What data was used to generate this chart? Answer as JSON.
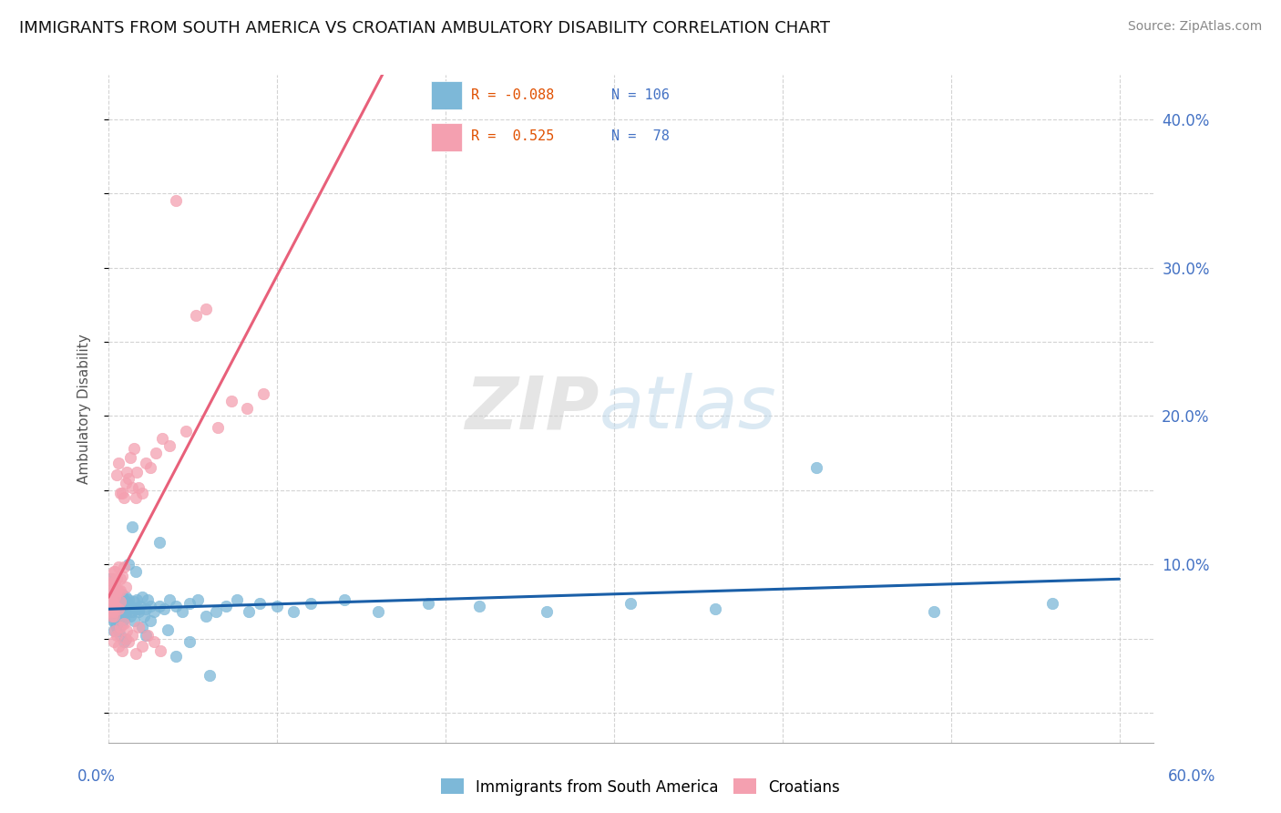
{
  "title": "IMMIGRANTS FROM SOUTH AMERICA VS CROATIAN AMBULATORY DISABILITY CORRELATION CHART",
  "source": "Source: ZipAtlas.com",
  "ylabel": "Ambulatory Disability",
  "xlim": [
    0.0,
    0.62
  ],
  "ylim": [
    -0.02,
    0.43
  ],
  "y_ticks": [
    0.1,
    0.2,
    0.3,
    0.4
  ],
  "y_tick_labels": [
    "10.0%",
    "20.0%",
    "30.0%",
    "40.0%"
  ],
  "blue_color": "#7db8d8",
  "pink_color": "#f4a0b0",
  "blue_line_color": "#1a5fa8",
  "pink_line_color": "#e8607a",
  "pink_dash_color": "#e8a0b0",
  "background_color": "#ffffff",
  "grid_color": "#c8c8c8",
  "title_fontsize": 13,
  "source_fontsize": 10,
  "axis_label_color": "#4472c4",
  "blue_scatter": {
    "x": [
      0.001,
      0.001,
      0.001,
      0.002,
      0.002,
      0.002,
      0.002,
      0.002,
      0.003,
      0.003,
      0.003,
      0.003,
      0.003,
      0.004,
      0.004,
      0.004,
      0.004,
      0.005,
      0.005,
      0.005,
      0.005,
      0.005,
      0.006,
      0.006,
      0.006,
      0.006,
      0.007,
      0.007,
      0.007,
      0.008,
      0.008,
      0.008,
      0.009,
      0.009,
      0.009,
      0.01,
      0.01,
      0.011,
      0.011,
      0.012,
      0.012,
      0.013,
      0.013,
      0.014,
      0.015,
      0.015,
      0.016,
      0.017,
      0.018,
      0.019,
      0.02,
      0.021,
      0.022,
      0.023,
      0.025,
      0.027,
      0.03,
      0.033,
      0.036,
      0.04,
      0.044,
      0.048,
      0.053,
      0.058,
      0.064,
      0.07,
      0.076,
      0.083,
      0.09,
      0.1,
      0.11,
      0.12,
      0.14,
      0.16,
      0.19,
      0.22,
      0.26,
      0.31,
      0.36,
      0.42,
      0.49,
      0.56,
      0.001,
      0.002,
      0.003,
      0.003,
      0.004,
      0.004,
      0.005,
      0.006,
      0.007,
      0.008,
      0.009,
      0.01,
      0.012,
      0.014,
      0.016,
      0.018,
      0.02,
      0.022,
      0.025,
      0.03,
      0.035,
      0.04,
      0.048,
      0.06
    ],
    "y": [
      0.075,
      0.082,
      0.068,
      0.072,
      0.078,
      0.065,
      0.085,
      0.07,
      0.074,
      0.08,
      0.068,
      0.076,
      0.062,
      0.072,
      0.078,
      0.065,
      0.071,
      0.075,
      0.068,
      0.082,
      0.06,
      0.074,
      0.07,
      0.076,
      0.063,
      0.08,
      0.072,
      0.068,
      0.078,
      0.074,
      0.065,
      0.08,
      0.07,
      0.076,
      0.063,
      0.072,
      0.078,
      0.068,
      0.075,
      0.07,
      0.076,
      0.072,
      0.065,
      0.068,
      0.075,
      0.062,
      0.07,
      0.076,
      0.068,
      0.072,
      0.078,
      0.065,
      0.07,
      0.076,
      0.072,
      0.068,
      0.115,
      0.07,
      0.076,
      0.072,
      0.068,
      0.074,
      0.076,
      0.065,
      0.068,
      0.072,
      0.076,
      0.068,
      0.074,
      0.072,
      0.068,
      0.074,
      0.076,
      0.068,
      0.074,
      0.072,
      0.068,
      0.074,
      0.07,
      0.165,
      0.068,
      0.074,
      0.09,
      0.085,
      0.055,
      0.065,
      0.06,
      0.07,
      0.058,
      0.055,
      0.052,
      0.06,
      0.048,
      0.05,
      0.1,
      0.125,
      0.095,
      0.07,
      0.058,
      0.052,
      0.062,
      0.072,
      0.056,
      0.038,
      0.048,
      0.025
    ]
  },
  "pink_scatter": {
    "x": [
      0.001,
      0.001,
      0.001,
      0.002,
      0.002,
      0.002,
      0.002,
      0.003,
      0.003,
      0.003,
      0.003,
      0.004,
      0.004,
      0.004,
      0.005,
      0.005,
      0.005,
      0.006,
      0.006,
      0.006,
      0.007,
      0.007,
      0.007,
      0.008,
      0.008,
      0.009,
      0.009,
      0.01,
      0.01,
      0.011,
      0.012,
      0.013,
      0.014,
      0.015,
      0.016,
      0.017,
      0.018,
      0.02,
      0.022,
      0.025,
      0.028,
      0.032,
      0.036,
      0.04,
      0.046,
      0.052,
      0.058,
      0.065,
      0.073,
      0.082,
      0.092,
      0.003,
      0.004,
      0.005,
      0.006,
      0.007,
      0.008,
      0.009,
      0.01,
      0.011,
      0.012,
      0.014,
      0.016,
      0.018,
      0.02,
      0.023,
      0.027,
      0.031,
      0.002,
      0.002,
      0.003,
      0.004,
      0.002,
      0.003,
      0.004,
      0.005,
      0.006,
      0.007
    ],
    "y": [
      0.068,
      0.078,
      0.088,
      0.072,
      0.08,
      0.09,
      0.082,
      0.072,
      0.095,
      0.078,
      0.065,
      0.088,
      0.095,
      0.072,
      0.16,
      0.09,
      0.082,
      0.168,
      0.098,
      0.082,
      0.148,
      0.09,
      0.082,
      0.148,
      0.092,
      0.145,
      0.098,
      0.155,
      0.085,
      0.162,
      0.158,
      0.172,
      0.152,
      0.178,
      0.145,
      0.162,
      0.152,
      0.148,
      0.168,
      0.165,
      0.175,
      0.185,
      0.18,
      0.345,
      0.19,
      0.268,
      0.272,
      0.192,
      0.21,
      0.205,
      0.215,
      0.048,
      0.055,
      0.052,
      0.045,
      0.058,
      0.042,
      0.06,
      0.05,
      0.055,
      0.048,
      0.052,
      0.04,
      0.058,
      0.045,
      0.052,
      0.048,
      0.042,
      0.075,
      0.065,
      0.068,
      0.072,
      0.085,
      0.088,
      0.078,
      0.082,
      0.07,
      0.075
    ]
  }
}
